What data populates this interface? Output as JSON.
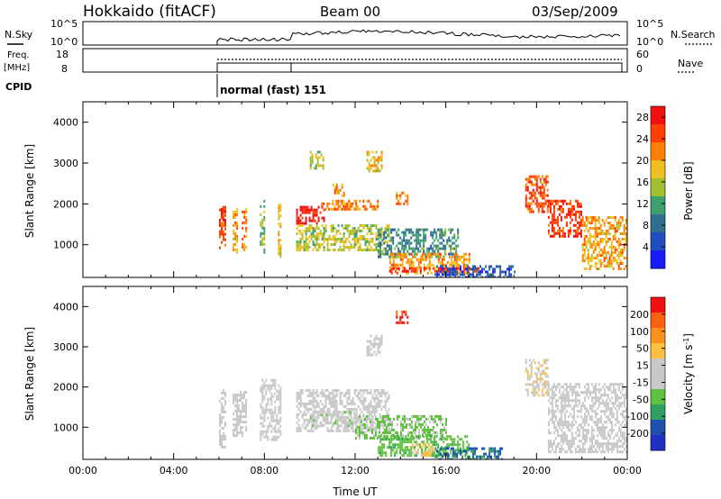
{
  "header": {
    "site": "Hokkaido (fitACF)",
    "beam": "Beam 00",
    "date": "03/Sep/2009"
  },
  "aux": {
    "nsky_label": "N.Sky",
    "nsearch_label": "N.Search",
    "nsky_ticks": [
      "10^5",
      "10^0"
    ],
    "nsearch_ticks": [
      "10^5",
      "10^0"
    ],
    "freq_label_1": "Freq.",
    "freq_label_2": "[MHz]",
    "freq_ticks": [
      "18",
      "8"
    ],
    "nave_label": "Nave",
    "nave_ticks": [
      "60",
      "0"
    ],
    "cpid_label": "CPID",
    "cpid_text": "normal (fast) 151"
  },
  "colors": {
    "power_scale": [
      "#1a1aff",
      "#1f4fbf",
      "#2f6f8f",
      "#3f9f6f",
      "#a0c030",
      "#f0c020",
      "#ff8000",
      "#ff4000",
      "#f01010"
    ],
    "velocity_scale": [
      "#f01010",
      "#ff6010",
      "#ff9020",
      "#ffc040",
      "#c8c8c8",
      "#c8c8c8",
      "#60c040",
      "#30a060",
      "#2050b0",
      "#2030c0"
    ],
    "ground_scatter": "#c8c8c8"
  },
  "chart_data": [
    {
      "type": "heatmap",
      "title": "",
      "xlabel": "",
      "ylabel": "Slant Range [km]",
      "xlim": [
        0,
        24
      ],
      "ylim": [
        200,
        4500
      ],
      "yticks": [
        1000,
        2000,
        3000,
        4000
      ],
      "colorbar": {
        "label": "Power [dB]",
        "ticks": [
          4,
          8,
          12,
          16,
          20,
          24,
          28
        ],
        "range": [
          0,
          30
        ]
      },
      "echo_regions": [
        {
          "t0": 6.0,
          "t1": 6.3,
          "r0": 900,
          "r1": 1950,
          "value": 24
        },
        {
          "t0": 6.0,
          "t1": 6.3,
          "r0": 1500,
          "r1": 1900,
          "value": 28
        },
        {
          "t0": 6.6,
          "t1": 6.8,
          "r0": 800,
          "r1": 1900,
          "value": 20
        },
        {
          "t0": 7.0,
          "t1": 7.2,
          "r0": 900,
          "r1": 1900,
          "value": 22
        },
        {
          "t0": 7.8,
          "t1": 8.0,
          "r0": 800,
          "r1": 2100,
          "value": 14
        },
        {
          "t0": 8.6,
          "t1": 8.7,
          "r0": 700,
          "r1": 2200,
          "value": 18
        },
        {
          "t0": 9.4,
          "t1": 10.6,
          "r0": 1500,
          "r1": 1950,
          "value": 28
        },
        {
          "t0": 9.4,
          "t1": 13.5,
          "r0": 900,
          "r1": 1500,
          "value": 16
        },
        {
          "t0": 10.5,
          "t1": 13.0,
          "r0": 1900,
          "r1": 2100,
          "value": 22
        },
        {
          "t0": 13.0,
          "t1": 16.5,
          "r0": 700,
          "r1": 1400,
          "value": 10
        },
        {
          "t0": 13.5,
          "t1": 17.0,
          "r0": 300,
          "r1": 800,
          "value": 20
        },
        {
          "t0": 13.5,
          "t1": 17.5,
          "r0": 350,
          "r1": 450,
          "value": 28
        },
        {
          "t0": 15.5,
          "t1": 19.0,
          "r0": 200,
          "r1": 500,
          "value": 6
        },
        {
          "t0": 19.5,
          "t1": 20.5,
          "r0": 1800,
          "r1": 2700,
          "value": 24
        },
        {
          "t0": 20.5,
          "t1": 22.0,
          "r0": 1200,
          "r1": 2100,
          "value": 26
        },
        {
          "t0": 22.0,
          "t1": 24.0,
          "r0": 400,
          "r1": 1700,
          "value": 20
        },
        {
          "t0": 12.5,
          "t1": 13.2,
          "r0": 2800,
          "r1": 3300,
          "value": 18
        },
        {
          "t0": 10.0,
          "t1": 10.6,
          "r0": 2900,
          "r1": 3300,
          "value": 16
        },
        {
          "t0": 13.8,
          "t1": 14.3,
          "r0": 2000,
          "r1": 2300,
          "value": 22
        },
        {
          "t0": 11.0,
          "t1": 11.5,
          "r0": 2200,
          "r1": 2500,
          "value": 20
        }
      ]
    },
    {
      "type": "heatmap",
      "title": "",
      "xlabel": "Time UT",
      "ylabel": "Slant Range [km]",
      "xlim": [
        0,
        24
      ],
      "ylim": [
        200,
        4500
      ],
      "xticks": [
        "00:00",
        "04:00",
        "08:00",
        "12:00",
        "16:00",
        "20:00",
        "00:00"
      ],
      "yticks": [
        1000,
        2000,
        3000,
        4000
      ],
      "colorbar": {
        "label": "Velocity [m s^-1]",
        "ticks": [
          200,
          100,
          50,
          15,
          -15,
          -50,
          -100,
          -200
        ],
        "range": [
          -250,
          250
        ]
      },
      "echo_regions": [
        {
          "t0": 6.0,
          "t1": 6.3,
          "r0": 500,
          "r1": 1950,
          "value": 0
        },
        {
          "t0": 6.6,
          "t1": 7.2,
          "r0": 800,
          "r1": 1900,
          "value": 0
        },
        {
          "t0": 7.8,
          "t1": 8.7,
          "r0": 700,
          "r1": 2200,
          "value": 0
        },
        {
          "t0": 9.4,
          "t1": 13.5,
          "r0": 900,
          "r1": 1950,
          "value": 0
        },
        {
          "t0": 10.0,
          "t1": 12.0,
          "r0": 1000,
          "r1": 1400,
          "value": -30
        },
        {
          "t0": 12.0,
          "t1": 16.0,
          "r0": 700,
          "r1": 1300,
          "value": -60
        },
        {
          "t0": 13.0,
          "t1": 17.0,
          "r0": 300,
          "r1": 800,
          "value": -80
        },
        {
          "t0": 15.5,
          "t1": 18.5,
          "r0": 200,
          "r1": 500,
          "value": -150
        },
        {
          "t0": 14.5,
          "t1": 15.5,
          "r0": 300,
          "r1": 600,
          "value": 60
        },
        {
          "t0": 19.5,
          "t1": 20.5,
          "r0": 1800,
          "r1": 2700,
          "value": 40
        },
        {
          "t0": 20.5,
          "t1": 24.0,
          "r0": 400,
          "r1": 2100,
          "value": 0
        },
        {
          "t0": 12.5,
          "t1": 13.2,
          "r0": 2800,
          "r1": 3300,
          "value": 0
        },
        {
          "t0": 13.8,
          "t1": 14.3,
          "r0": 3600,
          "r1": 3900,
          "value": 200
        }
      ]
    }
  ]
}
